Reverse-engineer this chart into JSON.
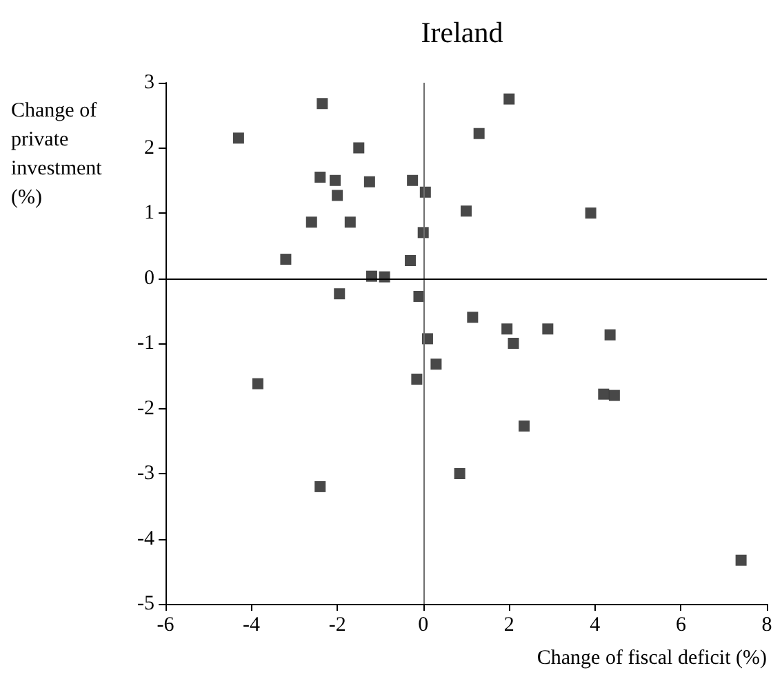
{
  "chart_data": {
    "type": "scatter",
    "title": "Ireland",
    "xlabel": "Change of fiscal deficit (%)",
    "ylabel": "Change of private investment (%)",
    "x": [
      -4.3,
      -2.35,
      -1.5,
      -2.4,
      -2.05,
      -1.25,
      -0.25,
      0.05,
      -2.0,
      -2.6,
      -1.7,
      0.0,
      -3.2,
      -0.3,
      -1.2,
      -0.9,
      -1.95,
      -0.1,
      0.1,
      -3.85,
      -0.15,
      0.3,
      -2.4,
      2.0,
      1.3,
      1.0,
      3.9,
      1.15,
      1.95,
      2.1,
      2.9,
      4.35,
      4.2,
      4.45,
      2.35,
      0.85,
      7.4
    ],
    "values": [
      2.15,
      2.68,
      2.0,
      1.55,
      1.5,
      1.48,
      1.5,
      1.32,
      1.27,
      0.86,
      0.86,
      0.7,
      0.29,
      0.27,
      0.03,
      0.02,
      -0.24,
      -0.28,
      -0.93,
      -1.62,
      -1.55,
      -1.32,
      -3.2,
      2.75,
      2.22,
      1.03,
      1.0,
      -0.6,
      -0.78,
      -1.0,
      -0.78,
      -0.87,
      -1.78,
      -1.8,
      -2.27,
      -3.0,
      -4.33
    ],
    "color": "#1a1a1a",
    "marker": "square",
    "grid": false,
    "xlim": [
      -6,
      8
    ],
    "xticks": [
      -6,
      -4,
      -2,
      0,
      2,
      4,
      6,
      8
    ],
    "ylim": [
      -5,
      3
    ],
    "yticks": [
      -5,
      -4,
      -3,
      -2,
      -1,
      0,
      1,
      2,
      3
    ],
    "ref_lines": [
      {
        "axis": "x",
        "value": 0,
        "color": "#6e6e6e"
      },
      {
        "axis": "y",
        "value": 0,
        "color": "#000000"
      }
    ]
  }
}
